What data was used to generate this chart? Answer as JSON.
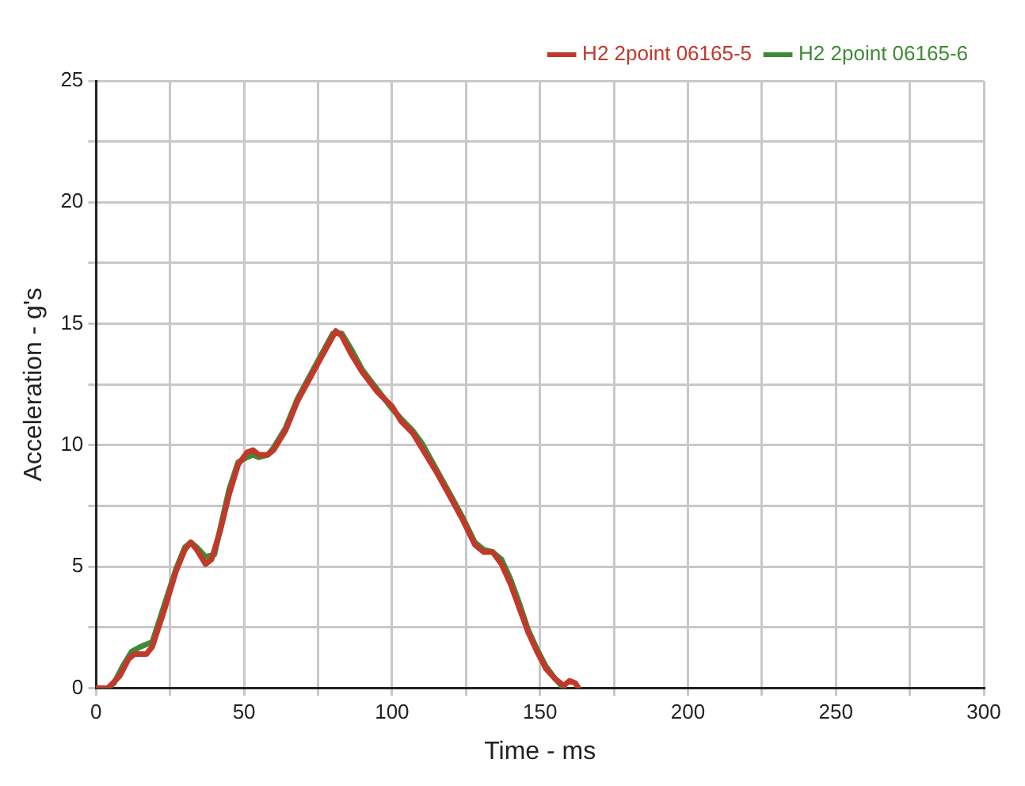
{
  "chart_data": {
    "type": "line",
    "xlabel": "Time - ms",
    "ylabel": "Acceleration - g's",
    "xlim": [
      0,
      300
    ],
    "ylim": [
      0,
      25
    ],
    "xticks": [
      0,
      {
        "value": 25,
        "label": null
      },
      50,
      {
        "value": 75,
        "label": null
      },
      100,
      {
        "value": 125,
        "label": null
      },
      150,
      {
        "value": 175,
        "label": null
      },
      200,
      {
        "value": 225,
        "label": null
      },
      250,
      {
        "value": 275,
        "label": null
      },
      300
    ],
    "yticks": [
      0,
      {
        "value": 2.5,
        "label": null
      },
      5,
      {
        "value": 7.5,
        "label": null
      },
      10,
      {
        "value": 12.5,
        "label": null
      },
      15,
      {
        "value": 17.5,
        "label": null
      },
      20,
      {
        "value": 22.5,
        "label": null
      },
      25
    ],
    "grid": true,
    "legend": "top right",
    "line_style": "solid",
    "marker": "none",
    "series": [
      {
        "name": "H2 2point 06165-5",
        "color": "#c0392b",
        "x": [
          0,
          4,
          8,
          11,
          13,
          17,
          19,
          23,
          27,
          30,
          32,
          34,
          37,
          39,
          42,
          45,
          48,
          51,
          53,
          55,
          58,
          60,
          64,
          68,
          72,
          76,
          81,
          83,
          86,
          90,
          95,
          100,
          103,
          107,
          110,
          115,
          120,
          124,
          128,
          131,
          134,
          137,
          140,
          143,
          146,
          149,
          152,
          155,
          158,
          160,
          162,
          163
        ],
        "values": [
          0,
          0,
          0.5,
          1.2,
          1.4,
          1.4,
          1.7,
          3.2,
          4.8,
          5.7,
          6.0,
          5.7,
          5.1,
          5.3,
          6.5,
          8.0,
          9.2,
          9.7,
          9.8,
          9.6,
          9.6,
          9.8,
          10.6,
          11.8,
          12.7,
          13.6,
          14.7,
          14.5,
          13.8,
          13.0,
          12.2,
          11.6,
          11.0,
          10.5,
          9.9,
          8.9,
          7.8,
          6.9,
          5.9,
          5.6,
          5.6,
          5.1,
          4.3,
          3.3,
          2.3,
          1.5,
          0.8,
          0.4,
          0.1,
          0.3,
          0.2,
          0
        ]
      },
      {
        "name": "H2 2point 06165-6",
        "color": "#3f8a36",
        "x": [
          0,
          4,
          6,
          9,
          12,
          15,
          19,
          23,
          27,
          30,
          32,
          34,
          37,
          40,
          42,
          45,
          48,
          51,
          53,
          55,
          58,
          60,
          64,
          68,
          72,
          76,
          80,
          83,
          86,
          90,
          95,
          100,
          103,
          107,
          110,
          115,
          120,
          124,
          128,
          131,
          134,
          137,
          140,
          143,
          146,
          149,
          152,
          155,
          158
        ],
        "values": [
          0,
          0,
          0.2,
          0.9,
          1.5,
          1.7,
          1.9,
          3.4,
          4.9,
          5.8,
          6.0,
          5.8,
          5.4,
          5.5,
          6.6,
          8.2,
          9.3,
          9.5,
          9.6,
          9.5,
          9.6,
          9.9,
          10.7,
          11.9,
          12.8,
          13.7,
          14.6,
          14.6,
          14.0,
          13.1,
          12.3,
          11.5,
          11.1,
          10.6,
          10.1,
          9.0,
          7.9,
          7.0,
          6.0,
          5.7,
          5.6,
          5.3,
          4.5,
          3.5,
          2.4,
          1.6,
          0.9,
          0.4,
          0
        ]
      }
    ]
  }
}
